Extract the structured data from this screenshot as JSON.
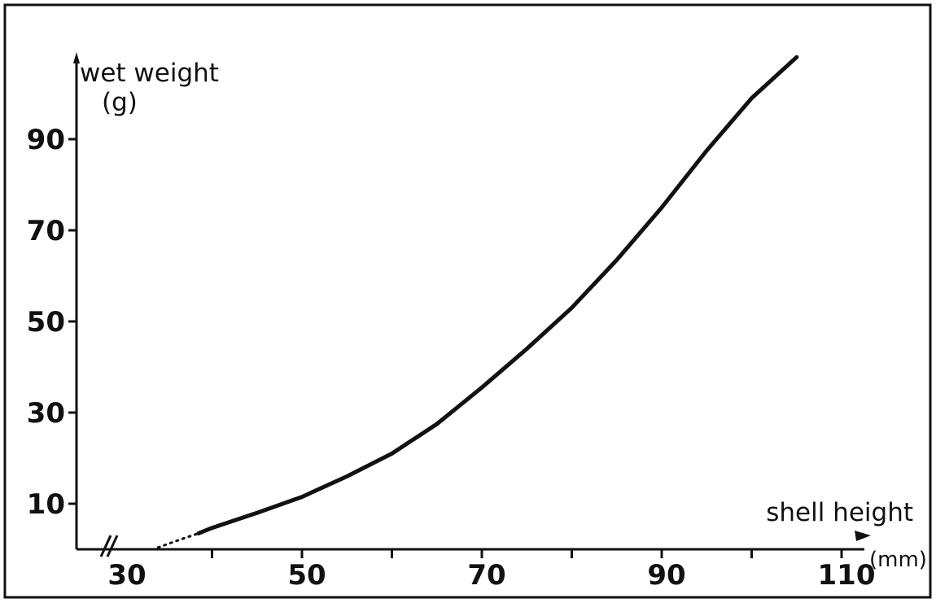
{
  "chart_data": {
    "type": "line",
    "title": "",
    "ylabel": "wet weight",
    "ylabel_unit": "(g)",
    "xlabel": "shell height",
    "xlabel_unit": "(mm)",
    "xlim": [
      25,
      112
    ],
    "ylim": [
      0,
      105
    ],
    "x_tick_values": [
      30,
      40,
      50,
      60,
      70,
      80,
      90,
      100,
      110
    ],
    "x_tick_labels": [
      "30",
      "",
      "50",
      "",
      "70",
      "",
      "90",
      "",
      "110"
    ],
    "y_tick_values": [
      10,
      30,
      50,
      70,
      90
    ],
    "y_tick_labels": [
      "10",
      "30",
      "50",
      "70",
      "90"
    ],
    "axis_break": true,
    "grid": false,
    "legend": "none",
    "series": [
      {
        "style": "dotted",
        "x": [
          34,
          35,
          36,
          37,
          38.5
        ],
        "y": [
          0.4,
          1.1,
          1.8,
          2.5,
          3.5
        ]
      },
      {
        "style": "solid",
        "x": [
          38.5,
          40,
          45,
          50,
          55,
          60,
          65,
          70,
          75,
          80,
          85,
          90,
          95,
          100,
          105
        ],
        "y": [
          3.5,
          4.7,
          8.0,
          11.5,
          16.0,
          21.0,
          27.5,
          35.5,
          44.0,
          53.0,
          63.5,
          75.0,
          87.5,
          99.0,
          108.0
        ]
      }
    ]
  }
}
